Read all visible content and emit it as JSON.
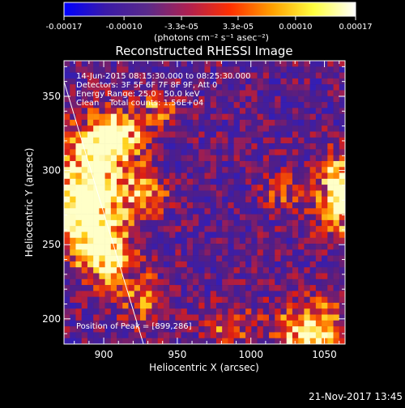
{
  "colorbar": {
    "ticks": [
      "-0.00017",
      "-0.00010",
      "-3.3e-05",
      "3.3e-05",
      "0.00010",
      "0.00017"
    ],
    "tick_values": [
      -0.00017,
      -0.0001,
      -3.3e-05,
      3.3e-05,
      0.0001,
      0.00017
    ],
    "range": [
      -0.00017,
      0.00017
    ],
    "units": "(photons cm⁻² s⁻¹ asec⁻²)",
    "colors": [
      "#0000ff",
      "#3a1aa8",
      "#5a2a8a",
      "#b02050",
      "#ff3000",
      "#ffa000",
      "#ffff40",
      "#ffffff"
    ]
  },
  "chart_data": {
    "type": "heatmap",
    "title": "Reconstructed RHESSI Image",
    "xlabel": "Heliocentric X (arcsec)",
    "ylabel": "Heliocentric Y (arcsec)",
    "xlim": [
      873,
      1064
    ],
    "ylim": [
      183,
      374
    ],
    "xticks": [
      900,
      950,
      1000,
      1050
    ],
    "yticks": [
      200,
      250,
      300,
      350
    ],
    "annotations": {
      "time": "14-Jun-2015 08:15:30.000 to 08:25:30.000",
      "detectors": "Detectors: 3F 5F 6F 7F 8F 9F, Att 0",
      "energy": "Energy Range: 25.0 - 50.0 keV",
      "clean": "Clean    Total counts: 1.56E+04",
      "peak": "Position of Peak = [899,286]"
    },
    "peak": [
      899,
      286
    ],
    "limb": [
      [
        873,
        360
      ],
      [
        927,
        183
      ]
    ],
    "bright_regions": [
      {
        "x": 893,
        "y": 300,
        "intensity": 1.0,
        "sx": 18,
        "sy": 22
      },
      {
        "x": 888,
        "y": 265,
        "intensity": 0.95,
        "sx": 15,
        "sy": 18
      },
      {
        "x": 912,
        "y": 325,
        "intensity": 0.75,
        "sx": 12,
        "sy": 12
      },
      {
        "x": 905,
        "y": 240,
        "intensity": 0.75,
        "sx": 12,
        "sy": 14
      },
      {
        "x": 930,
        "y": 282,
        "intensity": 0.55,
        "sx": 10,
        "sy": 10
      },
      {
        "x": 940,
        "y": 343,
        "intensity": 0.45,
        "sx": 10,
        "sy": 8
      },
      {
        "x": 928,
        "y": 212,
        "intensity": 0.55,
        "sx": 10,
        "sy": 12
      },
      {
        "x": 1040,
        "y": 190,
        "intensity": 0.95,
        "sx": 16,
        "sy": 14
      },
      {
        "x": 1060,
        "y": 275,
        "intensity": 0.85,
        "sx": 11,
        "sy": 15
      },
      {
        "x": 1058,
        "y": 300,
        "intensity": 0.6,
        "sx": 8,
        "sy": 10
      },
      {
        "x": 985,
        "y": 195,
        "intensity": 0.45,
        "sx": 12,
        "sy": 10
      },
      {
        "x": 1022,
        "y": 285,
        "intensity": 0.3,
        "sx": 10,
        "sy": 10
      }
    ]
  },
  "footer": {
    "timestamp": "21-Nov-2017 13:45"
  }
}
